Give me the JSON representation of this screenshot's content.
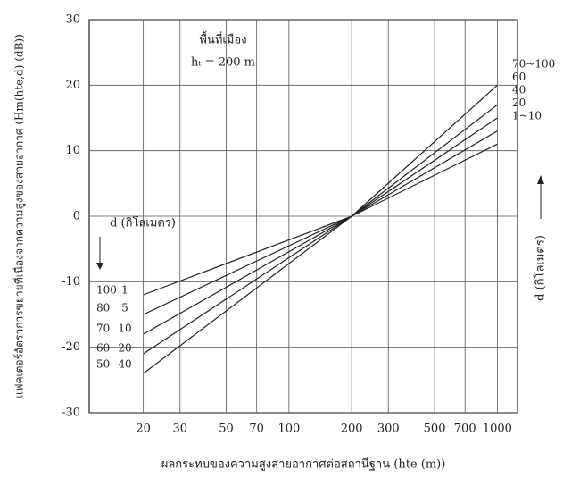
{
  "chart_data": {
    "type": "line",
    "annotations": [
      "พื้นที่เมือง",
      "hₜ = 200 m",
      "d (กิโลเมตร)",
      "d (กิโลเมตร)"
    ],
    "left_labels": [
      "100",
      "80",
      "70",
      "60",
      "50"
    ],
    "left_labels_2": [
      "1",
      "5",
      "10",
      "20",
      "40"
    ],
    "y_label": "แฟคเตอร์อัตราการขยายที่เนื่องจากความสูงของสายอากาศ (Hm(hte,d) (dB))",
    "x_label": "ผลกระทบของความสูงสายอากาศต่อสถานีฐาน (hte (m))",
    "x": [
      20,
      200,
      1000
    ],
    "series": [
      {
        "name": "70~100",
        "color": "#222",
        "values": [
          -24,
          0,
          20
        ]
      },
      {
        "name": "60",
        "color": "#222",
        "values": [
          -21,
          0,
          17
        ]
      },
      {
        "name": "40",
        "color": "#222",
        "values": [
          -18,
          0,
          15
        ]
      },
      {
        "name": "20",
        "color": "#222",
        "values": [
          -15,
          0,
          13
        ]
      },
      {
        "name": "1~10",
        "color": "#222",
        "values": [
          -12,
          0,
          11
        ]
      }
    ],
    "xscale": "log",
    "xlim": [
      11,
      1250
    ],
    "xticks": [
      20,
      30,
      50,
      70,
      100,
      200,
      300,
      500,
      700,
      1000
    ],
    "ylim": [
      -30,
      30
    ],
    "yticks": [
      -30,
      -20,
      -10,
      0,
      10,
      20,
      30
    ],
    "grid": true
  }
}
